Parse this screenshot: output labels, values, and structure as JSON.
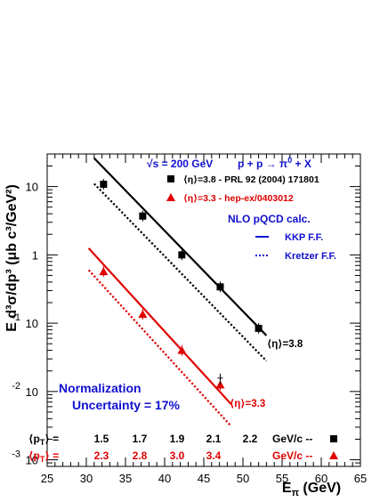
{
  "chart_data": {
    "type": "scatter",
    "xlabel_main": "E",
    "xlabel_sub": "π",
    "xlabel_unit": " (GeV)",
    "ylabel_text": "E d³σ/dp³ (μb c³/GeV²)",
    "xlim": [
      25,
      65
    ],
    "ylim": [
      0.0008,
      30
    ],
    "yscale": "log",
    "x_ticks": [
      "25",
      "30",
      "35",
      "40",
      "45",
      "50",
      "55",
      "60",
      "65"
    ],
    "y_tick_labels": [
      {
        "value": 10,
        "base": "10",
        "exp": ""
      },
      {
        "value": 1,
        "base": "1",
        "exp": ""
      },
      {
        "value": 0.1,
        "base": "10",
        "exp": "-1"
      },
      {
        "value": 0.01,
        "base": "10",
        "exp": "-2"
      },
      {
        "value": 0.001,
        "base": "10",
        "exp": "-3"
      }
    ],
    "header": {
      "sqrt_s": "√s = 200 GeV",
      "reaction_base": "p + p → π",
      "reaction_sup": "0",
      "reaction_end": " + X"
    },
    "series": [
      {
        "name": "⟨η⟩=3.8 - PRL 92 (2004) 171801",
        "color": "#000000",
        "marker": "square",
        "x": [
          32.2,
          37.2,
          42.2,
          47.1,
          52.0
        ],
        "y": [
          10.8,
          3.7,
          1.0,
          0.34,
          0.084
        ]
      },
      {
        "name": "⟨η⟩=3.3 - hep-ex/0403012",
        "color": "#e00000",
        "marker": "triangle",
        "x": [
          32.2,
          37.2,
          42.2,
          47.1
        ],
        "y": [
          0.57,
          0.135,
          0.04,
          0.0125
        ]
      }
    ],
    "curves": [
      {
        "series": "eta38_kkp",
        "color": "#000000",
        "style": "solid",
        "x": [
          31.0,
          53.0
        ],
        "y": [
          26.0,
          0.066
        ]
      },
      {
        "series": "eta38_kretzer",
        "color": "#000000",
        "style": "dotted",
        "x": [
          31.0,
          53.0
        ],
        "y": [
          11.0,
          0.028
        ]
      },
      {
        "series": "eta33_kkp",
        "color": "#e00000",
        "style": "solid",
        "x": [
          30.3,
          48.5
        ],
        "y": [
          1.25,
          0.0065
        ]
      },
      {
        "series": "eta33_kretzer",
        "color": "#e00000",
        "style": "dotted",
        "x": [
          30.3,
          48.5
        ],
        "y": [
          0.6,
          0.0031
        ]
      }
    ],
    "cross_marker": {
      "x": 47.1,
      "y": 0.0135
    },
    "theory_title": "NLO pQCD calc.",
    "theory_legend": [
      {
        "label": "KKP F.F.",
        "style": "solid"
      },
      {
        "label": "Kretzer F.F.",
        "style": "dotted"
      }
    ],
    "curve_labels": [
      {
        "text": "⟨η⟩=3.8",
        "color": "#000000"
      },
      {
        "text": "⟨η⟩=3.3",
        "color": "#e00000"
      }
    ],
    "normalization": [
      "Normalization",
      "Uncertainty = 17%"
    ],
    "pt_rows": [
      {
        "label_base": "⟨p",
        "label_sub": "T",
        "label_end": "⟩ =",
        "color": "#000000",
        "values": [
          "1.5",
          "1.7",
          "1.9",
          "2.1",
          "2.2"
        ],
        "unit": "GeV/c  --",
        "marker": "square"
      },
      {
        "label_base": "⟨p",
        "label_sub": "T",
        "label_end": "⟩ =",
        "color": "#e00000",
        "values": [
          "2.3",
          "2.8",
          "3.0",
          "3.4"
        ],
        "unit": "GeV/c  --",
        "marker": "triangle"
      }
    ]
  }
}
